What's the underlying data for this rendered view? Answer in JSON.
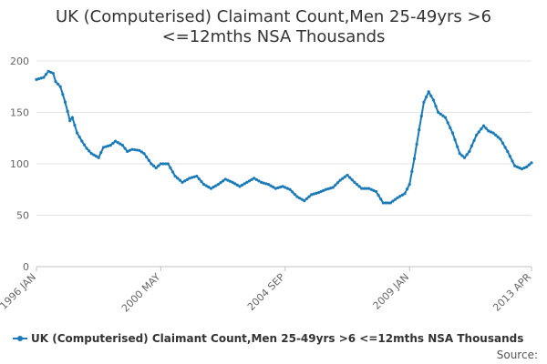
{
  "chart_data": {
    "type": "line",
    "title_lines": [
      "UK (Computerised) Claimant Count,Men 25-49yrs >6",
      "<=12mths NSA Thousands"
    ],
    "xlabel": "",
    "ylabel": "",
    "x_tick_labels": [
      "1996 JAN",
      "2000 MAY",
      "2004 SEP",
      "2009 JAN",
      "2013 APR"
    ],
    "y_ticks": [
      0,
      50,
      100,
      150,
      200
    ],
    "ylim": [
      0,
      200
    ],
    "grid": true,
    "legend_position": "bottom",
    "source_label": "Source:",
    "series": [
      {
        "name": "UK (Computerised) Claimant Count,Men 25-49yrs >6 <=12mths NSA Thousands",
        "color": "#1a7ab8",
        "start": "1996 JAN",
        "end": "2013 APR",
        "frequency": "monthly",
        "keyframes": [
          [
            "1996 JAN",
            182
          ],
          [
            "1996 APR",
            184
          ],
          [
            "1996 JUN",
            190
          ],
          [
            "1996 AUG",
            188
          ],
          [
            "1996 SEP",
            180
          ],
          [
            "1996 NOV",
            175
          ],
          [
            "1997 JAN",
            160
          ],
          [
            "1997 MAR",
            142
          ],
          [
            "1997 APR",
            145
          ],
          [
            "1997 JUN",
            130
          ],
          [
            "1997 AUG",
            122
          ],
          [
            "1997 OCT",
            115
          ],
          [
            "1997 DEC",
            110
          ],
          [
            "1998 MAR",
            106
          ],
          [
            "1998 MAY",
            116
          ],
          [
            "1998 AUG",
            118
          ],
          [
            "1998 OCT",
            122
          ],
          [
            "1999 JAN",
            118
          ],
          [
            "1999 MAR",
            112
          ],
          [
            "1999 MAY",
            114
          ],
          [
            "1999 AUG",
            113
          ],
          [
            "1999 OCT",
            110
          ],
          [
            "2000 JAN",
            100
          ],
          [
            "2000 MAR",
            96
          ],
          [
            "2000 MAY",
            100
          ],
          [
            "2000 AUG",
            100
          ],
          [
            "2000 NOV",
            88
          ],
          [
            "2001 FEB",
            82
          ],
          [
            "2001 MAY",
            86
          ],
          [
            "2001 AUG",
            88
          ],
          [
            "2001 NOV",
            80
          ],
          [
            "2002 FEB",
            76
          ],
          [
            "2002 MAY",
            80
          ],
          [
            "2002 AUG",
            85
          ],
          [
            "2002 NOV",
            82
          ],
          [
            "2003 FEB",
            78
          ],
          [
            "2003 MAY",
            82
          ],
          [
            "2003 AUG",
            86
          ],
          [
            "2003 NOV",
            82
          ],
          [
            "2004 FEB",
            80
          ],
          [
            "2004 MAY",
            76
          ],
          [
            "2004 AUG",
            78
          ],
          [
            "2004 NOV",
            75
          ],
          [
            "2005 FEB",
            68
          ],
          [
            "2005 MAY",
            64
          ],
          [
            "2005 AUG",
            70
          ],
          [
            "2005 NOV",
            72
          ],
          [
            "2006 FEB",
            75
          ],
          [
            "2006 MAY",
            77
          ],
          [
            "2006 AUG",
            84
          ],
          [
            "2006 NOV",
            89
          ],
          [
            "2007 FEB",
            82
          ],
          [
            "2007 MAY",
            76
          ],
          [
            "2007 AUG",
            76
          ],
          [
            "2007 NOV",
            73
          ],
          [
            "2008 FEB",
            62
          ],
          [
            "2008 MAY",
            62
          ],
          [
            "2008 AUG",
            67
          ],
          [
            "2008 NOV",
            71
          ],
          [
            "2009 JAN",
            80
          ],
          [
            "2009 MAR",
            105
          ],
          [
            "2009 MAY",
            133
          ],
          [
            "2009 JUL",
            160
          ],
          [
            "2009 SEP",
            170
          ],
          [
            "2009 NOV",
            162
          ],
          [
            "2010 JAN",
            150
          ],
          [
            "2010 APR",
            145
          ],
          [
            "2010 JUL",
            130
          ],
          [
            "2010 OCT",
            110
          ],
          [
            "2010 DEC",
            106
          ],
          [
            "2011 FEB",
            112
          ],
          [
            "2011 MAY",
            128
          ],
          [
            "2011 AUG",
            137
          ],
          [
            "2011 OCT",
            132
          ],
          [
            "2011 DEC",
            130
          ],
          [
            "2012 MAR",
            124
          ],
          [
            "2012 JUN",
            112
          ],
          [
            "2012 SEP",
            98
          ],
          [
            "2012 DEC",
            95
          ],
          [
            "2013 FEB",
            97
          ],
          [
            "2013 APR",
            101
          ]
        ]
      }
    ]
  }
}
